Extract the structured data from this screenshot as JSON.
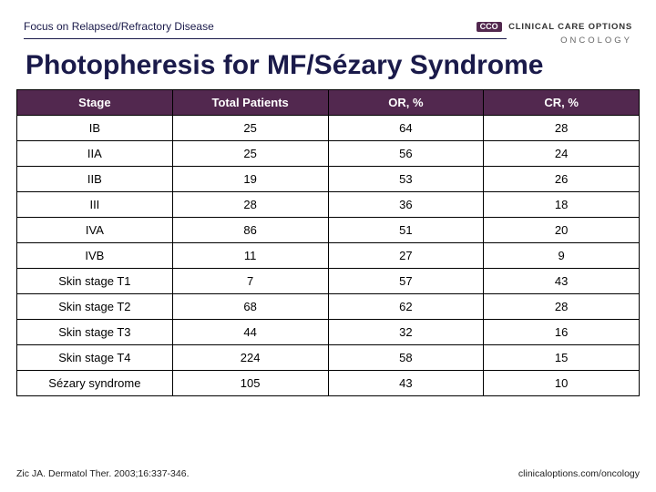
{
  "eyebrow": "Focus on Relapsed/Refractory Disease",
  "logo": {
    "badge": "CCO",
    "line1": "CLINICAL CARE OPTIONS",
    "line2": "ONCOLOGY"
  },
  "title": "Photopheresis for MF/Sézary Syndrome",
  "table": {
    "type": "table",
    "header_bg": "#52284f",
    "header_fg": "#ffffff",
    "cell_bg": "#ffffff",
    "cell_fg": "#000000",
    "border_color": "#000000",
    "font_size": 13,
    "columns": [
      "Stage",
      "Total Patients",
      "OR, %",
      "CR, %"
    ],
    "rows": [
      [
        "IB",
        "25",
        "64",
        "28"
      ],
      [
        "IIA",
        "25",
        "56",
        "24"
      ],
      [
        "IIB",
        "19",
        "53",
        "26"
      ],
      [
        "III",
        "28",
        "36",
        "18"
      ],
      [
        "IVA",
        "86",
        "51",
        "20"
      ],
      [
        "IVB",
        "11",
        "27",
        "9"
      ],
      [
        "Skin stage T1",
        "7",
        "57",
        "43"
      ],
      [
        "Skin stage T2",
        "68",
        "62",
        "28"
      ],
      [
        "Skin stage T3",
        "44",
        "32",
        "16"
      ],
      [
        "Skin stage T4",
        "224",
        "58",
        "15"
      ],
      [
        "Sézary syndrome",
        "105",
        "43",
        "10"
      ]
    ]
  },
  "footer": {
    "citation": "Zic JA. Dermatol Ther. 2003;16:337-346.",
    "url": "clinicaloptions.com/oncology"
  },
  "colors": {
    "brand_dark": "#1a1a4a",
    "brand_purple": "#52284f",
    "background": "#ffffff"
  }
}
